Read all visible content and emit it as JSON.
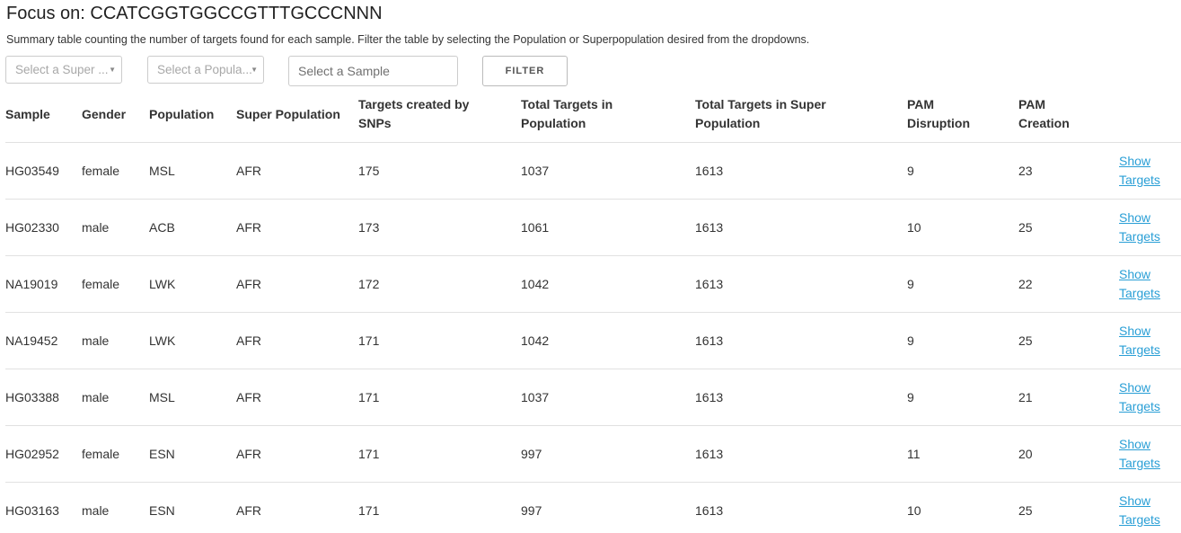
{
  "header": {
    "title": "Focus on: CCATCGGTGGCCGTTTGCCCNNN",
    "description": "Summary table counting the number of targets found for each sample. Filter the table by selecting the Population or Superpopulation desired from the dropdowns."
  },
  "filters": {
    "superpopulation_placeholder": "Select a Super ...",
    "population_placeholder": "Select a Popula...",
    "sample_placeholder": "Select a Sample",
    "filter_label": "FILTER"
  },
  "table": {
    "columns": [
      "Sample",
      "Gender",
      "Population",
      "Super Population",
      "Targets created by SNPs",
      "Total Targets in Population",
      "Total Targets in Super Population",
      "PAM Disruption",
      "PAM Creation",
      ""
    ],
    "link_label": "Show Targets",
    "rows": [
      {
        "sample": "HG03549",
        "gender": "female",
        "population": "MSL",
        "superpopulation": "AFR",
        "snp_targets": "175",
        "pop_targets": "1037",
        "superpop_targets": "1613",
        "pam_disruption": "9",
        "pam_creation": "23"
      },
      {
        "sample": "HG02330",
        "gender": "male",
        "population": "ACB",
        "superpopulation": "AFR",
        "snp_targets": "173",
        "pop_targets": "1061",
        "superpop_targets": "1613",
        "pam_disruption": "10",
        "pam_creation": "25"
      },
      {
        "sample": "NA19019",
        "gender": "female",
        "population": "LWK",
        "superpopulation": "AFR",
        "snp_targets": "172",
        "pop_targets": "1042",
        "superpop_targets": "1613",
        "pam_disruption": "9",
        "pam_creation": "22"
      },
      {
        "sample": "NA19452",
        "gender": "male",
        "population": "LWK",
        "superpopulation": "AFR",
        "snp_targets": "171",
        "pop_targets": "1042",
        "superpop_targets": "1613",
        "pam_disruption": "9",
        "pam_creation": "25"
      },
      {
        "sample": "HG03388",
        "gender": "male",
        "population": "MSL",
        "superpopulation": "AFR",
        "snp_targets": "171",
        "pop_targets": "1037",
        "superpop_targets": "1613",
        "pam_disruption": "9",
        "pam_creation": "21"
      },
      {
        "sample": "HG02952",
        "gender": "female",
        "population": "ESN",
        "superpopulation": "AFR",
        "snp_targets": "171",
        "pop_targets": "997",
        "superpop_targets": "1613",
        "pam_disruption": "11",
        "pam_creation": "20"
      },
      {
        "sample": "HG03163",
        "gender": "male",
        "population": "ESN",
        "superpopulation": "AFR",
        "snp_targets": "171",
        "pop_targets": "997",
        "superpop_targets": "1613",
        "pam_disruption": "10",
        "pam_creation": "25"
      }
    ]
  },
  "colors": {
    "link": "#2a9fd6",
    "row_border": "#e1e1e1",
    "text": "#333333"
  }
}
